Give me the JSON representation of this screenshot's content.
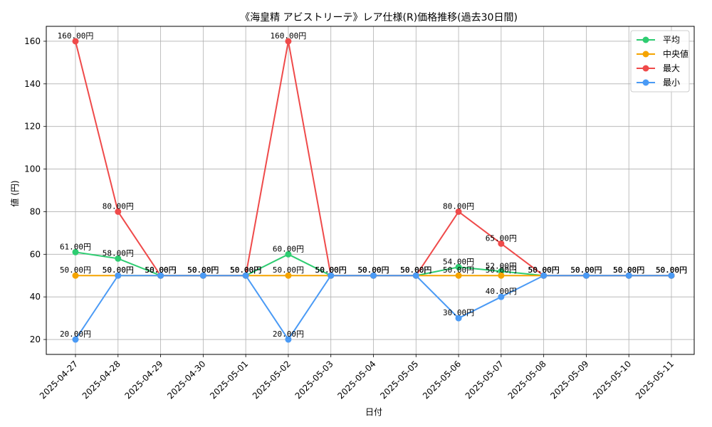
{
  "chart_data": {
    "type": "line",
    "title": "《海皇精 アビストリーテ》レア仕様(R)価格推移(過去30日間)",
    "xlabel": "日付",
    "ylabel": "値 (円)",
    "categories": [
      "2025-04-27",
      "2025-04-28",
      "2025-04-29",
      "2025-04-30",
      "2025-05-01",
      "2025-05-02",
      "2025-05-03",
      "2025-05-04",
      "2025-05-05",
      "2025-05-06",
      "2025-05-07",
      "2025-05-08",
      "2025-05-09",
      "2025-05-10",
      "2025-05-11"
    ],
    "ylim": [
      13,
      167
    ],
    "yticks": [
      20,
      40,
      60,
      80,
      100,
      120,
      140,
      160
    ],
    "grid": true,
    "legend_position": "top-right",
    "value_suffix": "円",
    "series": [
      {
        "name": "平均",
        "color": "#2ecc71",
        "values": [
          61,
          58,
          50,
          50,
          50,
          60,
          50,
          50,
          50,
          54,
          52,
          50,
          50,
          50,
          50
        ]
      },
      {
        "name": "中央値",
        "color": "#f5a400",
        "values": [
          50,
          50,
          50,
          50,
          50,
          50,
          50,
          50,
          50,
          50,
          50,
          50,
          50,
          50,
          50
        ]
      },
      {
        "name": "最大",
        "color": "#ef4a4a",
        "values": [
          160,
          80,
          50,
          50,
          50,
          160,
          50,
          50,
          50,
          80,
          65,
          50,
          50,
          50,
          50
        ]
      },
      {
        "name": "最小",
        "color": "#4a9af5",
        "values": [
          20,
          50,
          50,
          50,
          50,
          20,
          50,
          50,
          50,
          30,
          40,
          50,
          50,
          50,
          50
        ]
      }
    ]
  }
}
